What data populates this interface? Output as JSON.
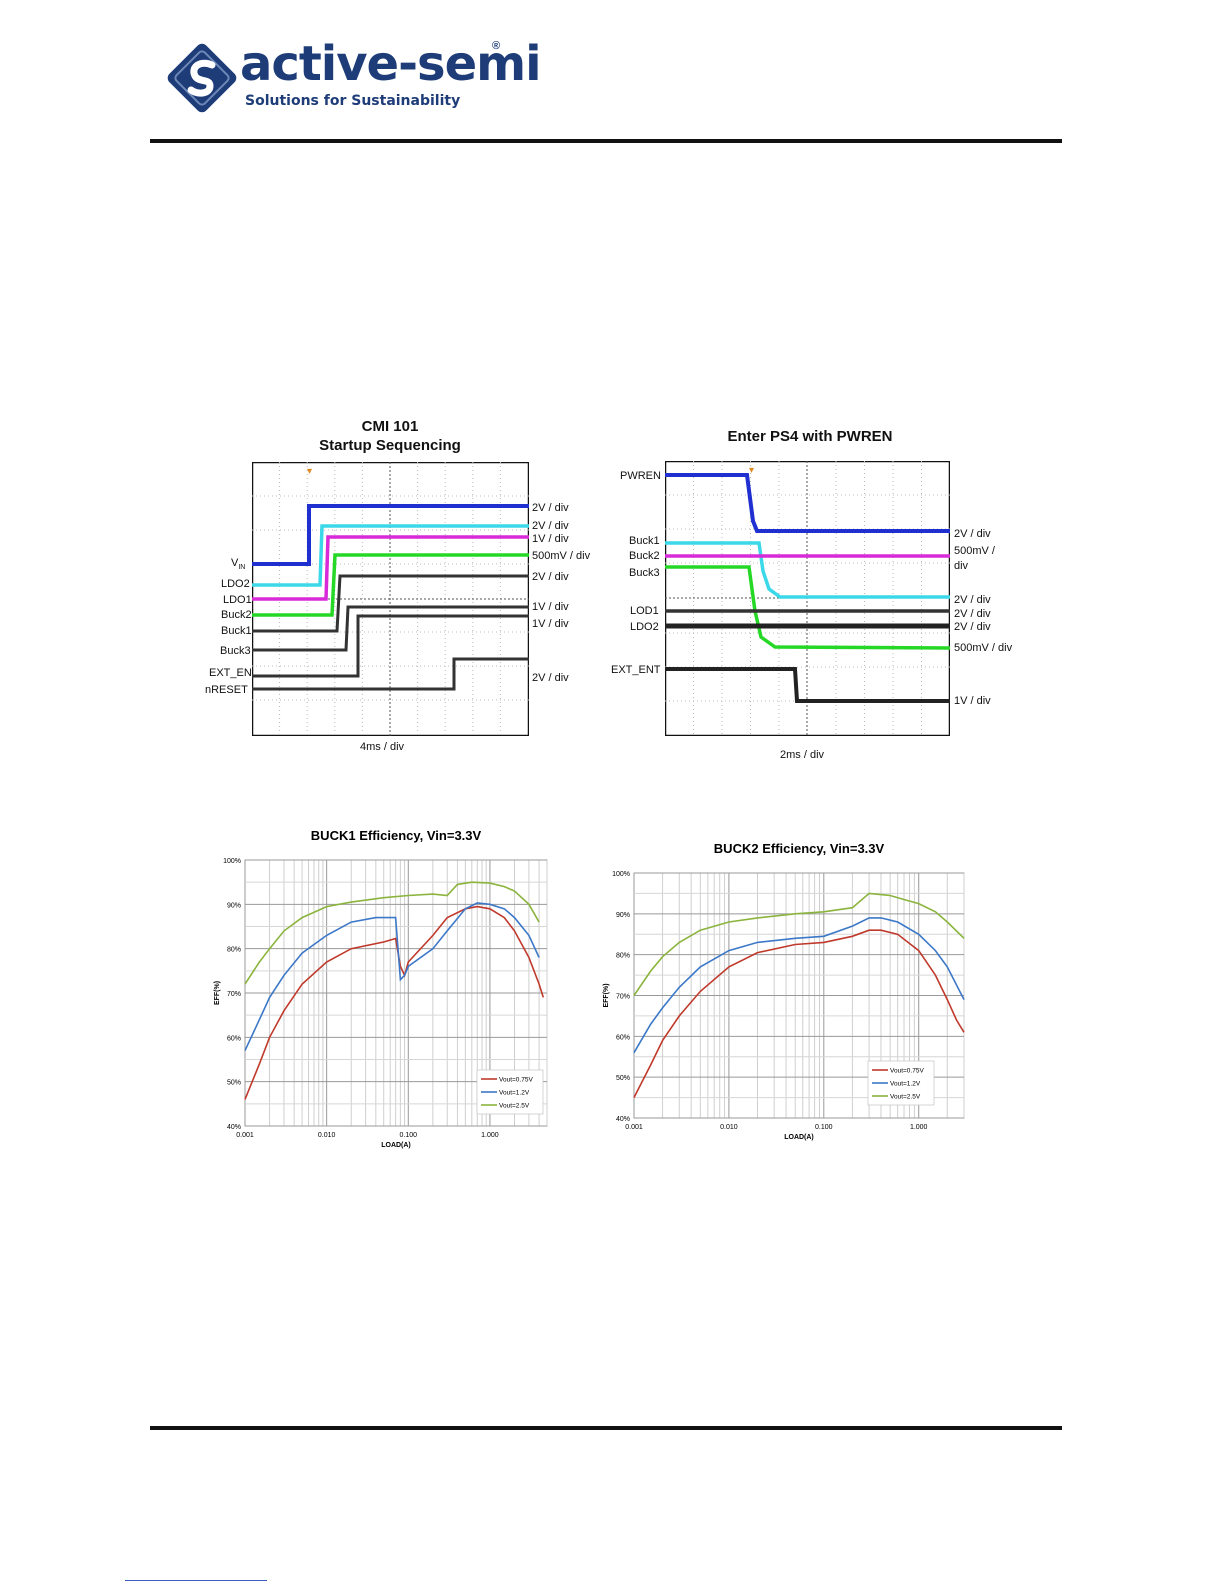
{
  "header": {
    "logo_text": "active-semi",
    "logo_tagline": "Solutions for Sustainability",
    "logo_reg": "®"
  },
  "scope1": {
    "title_line1": "CMI  101",
    "title_line2": "Startup Sequencing",
    "timebase": "4ms / div",
    "left_labels": [
      "V",
      "LDO2",
      "LDO1",
      "Buck2",
      "Buck1",
      "Buck3",
      "EXT_EN",
      "nRESET"
    ],
    "vin_sub": "IN",
    "scale_labels": [
      "2V / div",
      "2V / div",
      "1V / div",
      "500mV / div",
      "2V / div",
      "1V / div",
      "1V / div",
      "2V / div"
    ]
  },
  "scope2": {
    "title": "Enter PS4 with PWREN",
    "timebase": "2ms / div",
    "left_labels": [
      "PWREN",
      "Buck1",
      "Buck2",
      "Buck3",
      "LOD1",
      "LDO2",
      "EXT_ENT"
    ],
    "scale_labels": [
      "2V / div",
      "500mV /",
      "div",
      "2V / div",
      "2V / div",
      "2V / div",
      "500mV / div",
      "1V / div"
    ]
  },
  "chart_data": [
    {
      "type": "line",
      "title": "BUCK1 Efficiency, Vin=3.3V",
      "xlabel": "LOAD(A)",
      "ylabel": "EFF(%)",
      "x_scale": "log",
      "xlim": [
        0.001,
        5
      ],
      "ylim": [
        40,
        100
      ],
      "x_tick_labels": [
        "0.001",
        "0.010",
        "0.100",
        "1.000"
      ],
      "y_tick_labels": [
        "40%",
        "50%",
        "60%",
        "70%",
        "80%",
        "90%",
        "100%"
      ],
      "grid": true,
      "legend_position": "bottom-right",
      "series": [
        {
          "name": "Vout=0.75V",
          "color": "#c0392b",
          "x": [
            0.001,
            0.0015,
            0.002,
            0.003,
            0.005,
            0.01,
            0.02,
            0.05,
            0.07,
            0.08,
            0.09,
            0.1,
            0.2,
            0.3,
            0.5,
            0.7,
            1.0,
            1.5,
            2.0,
            3.0,
            4.0,
            4.5
          ],
          "y": [
            46,
            54,
            60,
            66,
            72,
            77,
            80,
            81.5,
            82.3,
            76,
            74,
            77,
            83,
            87,
            89,
            89.5,
            89,
            87,
            84,
            78,
            72,
            69
          ]
        },
        {
          "name": "Vout=1.2V",
          "color": "#3c78c8",
          "x": [
            0.001,
            0.0015,
            0.002,
            0.003,
            0.005,
            0.01,
            0.02,
            0.04,
            0.07,
            0.08,
            0.09,
            0.1,
            0.2,
            0.3,
            0.5,
            0.7,
            1.0,
            1.5,
            2.0,
            3.0,
            4.0
          ],
          "y": [
            57,
            64,
            69,
            74,
            79,
            83,
            86,
            87,
            87,
            73,
            74,
            76,
            80,
            84,
            89,
            90.3,
            90,
            89,
            87,
            83,
            78
          ]
        },
        {
          "name": "Vout=2.5V",
          "color": "#8ab43c",
          "x": [
            0.001,
            0.0015,
            0.002,
            0.003,
            0.005,
            0.01,
            0.02,
            0.05,
            0.1,
            0.2,
            0.3,
            0.4,
            0.6,
            1.0,
            1.5,
            2.0,
            3.0,
            4.0
          ],
          "y": [
            72,
            77,
            80,
            84,
            87,
            89.5,
            90.5,
            91.5,
            92,
            92.3,
            92,
            94.5,
            95,
            94.8,
            94,
            93,
            90,
            86
          ]
        }
      ]
    },
    {
      "type": "line",
      "title": "BUCK2 Efficiency, Vin=3.3V",
      "xlabel": "LOAD(A)",
      "ylabel": "EFF(%)",
      "x_scale": "log",
      "xlim": [
        0.001,
        3
      ],
      "ylim": [
        40,
        100
      ],
      "x_tick_labels": [
        "0.001",
        "0.010",
        "0.100",
        "1.000"
      ],
      "y_tick_labels": [
        "40%",
        "50%",
        "60%",
        "70%",
        "80%",
        "90%",
        "100%"
      ],
      "grid": true,
      "legend_position": "bottom-right",
      "series": [
        {
          "name": "Vout=0.75V",
          "color": "#c0392b",
          "x": [
            0.001,
            0.0015,
            0.002,
            0.003,
            0.005,
            0.01,
            0.02,
            0.05,
            0.1,
            0.2,
            0.3,
            0.4,
            0.6,
            1.0,
            1.5,
            2.0,
            2.5,
            3.0
          ],
          "y": [
            45,
            53,
            59,
            65,
            71,
            77,
            80.5,
            82.5,
            83,
            84.5,
            86,
            86,
            85,
            81,
            75,
            69,
            64,
            61
          ]
        },
        {
          "name": "Vout=1.2V",
          "color": "#3c78c8",
          "x": [
            0.001,
            0.0015,
            0.002,
            0.003,
            0.005,
            0.01,
            0.02,
            0.05,
            0.1,
            0.2,
            0.3,
            0.4,
            0.6,
            1.0,
            1.5,
            2.0,
            3.0
          ],
          "y": [
            56,
            63,
            67,
            72,
            77,
            81,
            83,
            84,
            84.5,
            87,
            89,
            89,
            88,
            85,
            81,
            77,
            69
          ]
        },
        {
          "name": "Vout=2.5V",
          "color": "#8ab43c",
          "x": [
            0.001,
            0.0015,
            0.002,
            0.003,
            0.005,
            0.01,
            0.02,
            0.05,
            0.1,
            0.2,
            0.3,
            0.5,
            0.7,
            1.0,
            1.5,
            2.0,
            3.0
          ],
          "y": [
            70,
            76,
            79.5,
            83,
            86,
            88,
            89,
            90,
            90.5,
            91.5,
            95,
            94.5,
            93.5,
            92.5,
            90.5,
            88,
            84
          ]
        }
      ]
    }
  ]
}
